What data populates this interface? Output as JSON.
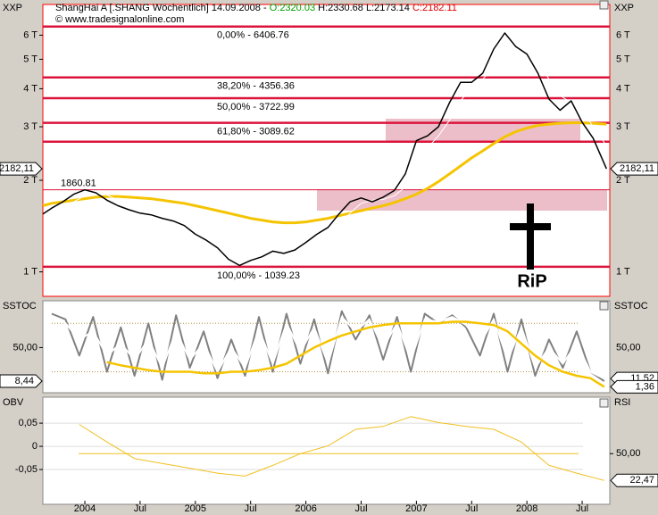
{
  "header": {
    "symbol_left": "XXP",
    "symbol_right": "XXP",
    "title": "ShangHai A [.SHANG  Wöchentlich] 14.09.2008 - ",
    "open": "O:2320.03",
    "high_low": " H:2330.68 L:2173.14 ",
    "close": "C:2182.11",
    "source": "© www.tradesignalonline.com"
  },
  "chart_data": [
    {
      "type": "line",
      "log_scale": true,
      "xlim": [
        2003.62,
        2008.75
      ],
      "xticks": [
        {
          "value": 2004,
          "label": "2004"
        },
        {
          "value": 2004.5,
          "label": "Jul"
        },
        {
          "value": 2005,
          "label": "2005"
        },
        {
          "value": 2005.5,
          "label": "Jul"
        },
        {
          "value": 2006,
          "label": "2006"
        },
        {
          "value": 2006.5,
          "label": "Jul"
        },
        {
          "value": 2007,
          "label": "2007"
        },
        {
          "value": 2007.5,
          "label": "Jul"
        },
        {
          "value": 2008,
          "label": "2008"
        },
        {
          "value": 2008.5,
          "label": "Jul"
        }
      ],
      "ylim": [
        831,
        7570
      ],
      "yticks": [
        {
          "value": 1000,
          "label": "1 T"
        },
        {
          "value": 2000,
          "label": "2 T"
        },
        {
          "value": 3000,
          "label": "3 T"
        },
        {
          "value": 4000,
          "label": "4 T"
        },
        {
          "value": 5000,
          "label": "5 T"
        },
        {
          "value": 6000,
          "label": "6 T"
        }
      ],
      "x": [
        2003.62,
        2003.7,
        2003.8,
        2003.9,
        2004.0,
        2004.1,
        2004.2,
        2004.3,
        2004.4,
        2004.5,
        2004.6,
        2004.7,
        2004.8,
        2004.9,
        2005.0,
        2005.1,
        2005.2,
        2005.3,
        2005.4,
        2005.5,
        2005.6,
        2005.7,
        2005.8,
        2005.9,
        2006.0,
        2006.1,
        2006.2,
        2006.3,
        2006.4,
        2006.5,
        2006.6,
        2006.7,
        2006.8,
        2006.9,
        2007.0,
        2007.1,
        2007.2,
        2007.3,
        2007.4,
        2007.5,
        2007.6,
        2007.7,
        2007.8,
        2007.9,
        2008.0,
        2008.1,
        2008.2,
        2008.3,
        2008.4,
        2008.5,
        2008.6,
        2008.72
      ],
      "series": [
        {
          "color": "#f5c400",
          "line_width": 3,
          "values": [
            1650,
            1680,
            1700,
            1720,
            1740,
            1760,
            1770,
            1770,
            1760,
            1750,
            1740,
            1720,
            1700,
            1680,
            1650,
            1620,
            1590,
            1560,
            1530,
            1500,
            1480,
            1460,
            1450,
            1450,
            1460,
            1480,
            1500,
            1530,
            1560,
            1590,
            1620,
            1650,
            1690,
            1740,
            1800,
            1880,
            1980,
            2100,
            2230,
            2370,
            2500,
            2640,
            2780,
            2890,
            2970,
            3030,
            3060,
            3080,
            3090,
            3090,
            3080,
            3060
          ]
        },
        {
          "color": "#ffffff",
          "line_width": 1,
          "values": [
            null,
            1580,
            1630,
            1700,
            1780,
            1820,
            1790,
            1720,
            1660,
            1610,
            1570,
            1540,
            1500,
            1460,
            1400,
            1330,
            1260,
            1180,
            1110,
            1090,
            1100,
            1130,
            1150,
            1160,
            1200,
            1260,
            1330,
            1420,
            1560,
            1680,
            1720,
            1730,
            1780,
            1900,
            2200,
            2550,
            2800,
            3150,
            3650,
            4050,
            4300,
            4700,
            5400,
            5700,
            5500,
            5000,
            4300,
            3800,
            3600,
            3400,
            3000,
            2600
          ]
        },
        {
          "color": "#000000",
          "line_width": 1.5,
          "values": [
            1550,
            1620,
            1700,
            1800,
            1860,
            1820,
            1720,
            1650,
            1600,
            1560,
            1540,
            1500,
            1470,
            1420,
            1330,
            1270,
            1200,
            1100,
            1050,
            1090,
            1120,
            1170,
            1150,
            1180,
            1250,
            1330,
            1400,
            1550,
            1700,
            1750,
            1700,
            1760,
            1850,
            2100,
            2700,
            2800,
            3000,
            3600,
            4200,
            4200,
            4500,
            5400,
            6100,
            5500,
            5200,
            4500,
            3700,
            3400,
            3650,
            3100,
            2750,
            2182.11
          ]
        }
      ],
      "level_color": "#dc143c",
      "levels": [
        {
          "value": 6406.76,
          "label": "0,00% - 6406.76"
        },
        {
          "value": 4356.36,
          "label": "38,20% - 4356.36"
        },
        {
          "value": 3722.99,
          "label": "50,00% - 3722.99"
        },
        {
          "value": 3089.62,
          "label": "61,80% - 3089.62"
        },
        {
          "value": 2680,
          "label": null
        },
        {
          "value": 1039.23,
          "label": "100,00% - 1039.23"
        }
      ],
      "marker_line": {
        "value": 1860.81,
        "label": "1860.81"
      },
      "annotation": "RiP",
      "value_boxes": [
        {
          "value": 2182.11,
          "label": "2182,11",
          "side": "left"
        },
        {
          "value": 2182.11,
          "label": "2182,11",
          "side": "right"
        }
      ]
    },
    {
      "type": "line",
      "title": "SSTOC",
      "title_right": "SSTOC",
      "ylim": [
        -6,
        108
      ],
      "yticks": [
        {
          "value": 50,
          "label": "50,00"
        }
      ],
      "levels": [
        80,
        20
      ],
      "x": [
        2003.7,
        2003.825,
        2003.95,
        2004.075,
        2004.2,
        2004.325,
        2004.45,
        2004.575,
        2004.7,
        2004.825,
        2004.95,
        2005.075,
        2005.2,
        2005.325,
        2005.45,
        2005.575,
        2005.7,
        2005.825,
        2005.95,
        2006.075,
        2006.2,
        2006.325,
        2006.45,
        2006.575,
        2006.7,
        2006.825,
        2006.95,
        2007.075,
        2007.2,
        2007.325,
        2007.45,
        2007.575,
        2007.7,
        2007.825,
        2007.95,
        2008.075,
        2008.2,
        2008.325,
        2008.45,
        2008.575,
        2008.7
      ],
      "series": [
        {
          "color": "#808080",
          "line_width": 2,
          "values": [
            92,
            85,
            40,
            88,
            20,
            75,
            15,
            80,
            10,
            90,
            25,
            70,
            12,
            60,
            15,
            88,
            20,
            92,
            30,
            85,
            18,
            95,
            60,
            90,
            35,
            88,
            20,
            92,
            80,
            90,
            75,
            40,
            92,
            20,
            85,
            15,
            60,
            25,
            70,
            20,
            8.44
          ]
        },
        {
          "color": "#ffffff",
          "line_width": 2,
          "values": [
            88,
            80,
            60,
            70,
            40,
            55,
            35,
            60,
            25,
            70,
            35,
            55,
            20,
            50,
            25,
            72,
            30,
            80,
            45,
            75,
            30,
            88,
            70,
            85,
            50,
            80,
            35,
            85,
            82,
            88,
            78,
            55,
            85,
            35,
            75,
            25,
            50,
            30,
            55,
            20,
            11.52
          ]
        },
        {
          "color": "#f5c400",
          "line_width": 2.5,
          "values": [
            null,
            null,
            null,
            null,
            32,
            28,
            25,
            22,
            20,
            20,
            20,
            18,
            18,
            20,
            20,
            22,
            25,
            30,
            40,
            50,
            58,
            65,
            70,
            75,
            78,
            80,
            80,
            80,
            80,
            82,
            82,
            80,
            78,
            70,
            55,
            40,
            28,
            20,
            15,
            12,
            1.36
          ]
        }
      ],
      "value_boxes": [
        {
          "value": 8.44,
          "label": "8,44",
          "side": "left"
        },
        {
          "value": 11.52,
          "label": "11,52",
          "side": "right"
        },
        {
          "value": 1.36,
          "label": "1,36",
          "side": "right"
        }
      ]
    },
    {
      "type": "line",
      "title": "OBV",
      "title_right": "RSI",
      "ylim": [
        -0.125,
        0.106
      ],
      "yticks": [
        {
          "value": 0.05,
          "label": "0,05"
        },
        0,
        {
          "value": -0.05,
          "label": "-0,05"
        }
      ],
      "y2lim": [
        -2,
        108
      ],
      "y2ticks": [
        {
          "value": 50,
          "label": "50,00"
        }
      ],
      "y2levels": [
        50
      ],
      "x": [
        2003.95,
        2004.2,
        2004.45,
        2004.7,
        2004.95,
        2005.2,
        2005.45,
        2005.7,
        2005.95,
        2006.2,
        2006.45,
        2006.7,
        2006.95,
        2007.2,
        2007.45,
        2007.7,
        2007.95,
        2008.2,
        2008.45,
        2008.7
      ],
      "series": [
        {
          "axis": "y2",
          "color": "#f0c020",
          "line_width": 1,
          "values": [
            80,
            62,
            45,
            40,
            35,
            30,
            27,
            38,
            50,
            58,
            75,
            78,
            88,
            82,
            78,
            75,
            62,
            38,
            30,
            22.47
          ]
        }
      ],
      "value_boxes": [
        {
          "value": 22.47,
          "label": "22,47",
          "side": "right",
          "axis": "y2"
        }
      ]
    }
  ]
}
